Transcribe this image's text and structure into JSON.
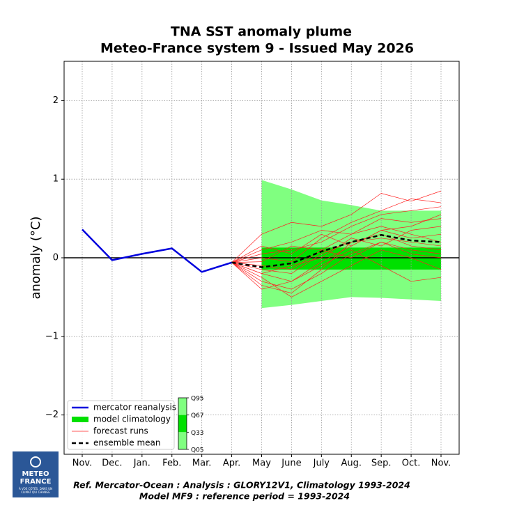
{
  "chart_data": {
    "type": "plume",
    "title": "TNA SST anomaly plume",
    "subtitle": "Meteo-France system 9 - Issued May 2026",
    "y_label": "anomaly (°C)",
    "categories": [
      "Nov.",
      "Dec.",
      "Jan.",
      "Feb.",
      "Mar.",
      "Apr.",
      "May",
      "June",
      "July",
      "Aug.",
      "Sep.",
      "Oct.",
      "Nov."
    ],
    "ylim": [
      -2.5,
      2.5
    ],
    "yticks": [
      {
        "value": -2,
        "label": "−2"
      },
      {
        "value": -1,
        "label": "−1"
      },
      0,
      1,
      2
    ],
    "grid": true,
    "zero_line": true,
    "legend": "lower left",
    "climatology": {
      "name": "model climatology",
      "color_outer": "#80ff80",
      "color_inner": "#00e000",
      "q95": [
        null,
        null,
        null,
        null,
        null,
        null,
        0.99,
        0.87,
        0.73,
        0.67,
        0.6,
        0.6,
        0.6
      ],
      "q67": [
        null,
        null,
        null,
        null,
        null,
        null,
        0.13,
        0.13,
        0.13,
        0.13,
        0.13,
        0.13,
        0.13
      ],
      "q33": [
        null,
        null,
        null,
        null,
        null,
        null,
        -0.15,
        -0.15,
        -0.15,
        -0.15,
        -0.15,
        -0.15,
        -0.15
      ],
      "q05": [
        null,
        null,
        null,
        null,
        null,
        null,
        -0.64,
        -0.6,
        -0.55,
        -0.5,
        -0.51,
        -0.53,
        -0.55
      ],
      "quantile_labels": [
        "Q95",
        "Q67",
        "Q33",
        "Q05"
      ]
    },
    "forecast_runs": {
      "name": "forecast runs",
      "color": "#ff2020",
      "runs": [
        [
          null,
          null,
          null,
          null,
          null,
          -0.06,
          -0.2,
          -0.3,
          -0.05,
          0.15,
          0.35,
          0.25,
          0.3
        ],
        [
          null,
          null,
          null,
          null,
          null,
          -0.06,
          0.1,
          0.2,
          0.35,
          0.3,
          0.5,
          0.45,
          0.5
        ],
        [
          null,
          null,
          null,
          null,
          null,
          -0.06,
          -0.3,
          -0.4,
          -0.2,
          0.05,
          0.2,
          0.1,
          0.05
        ],
        [
          null,
          null,
          null,
          null,
          null,
          -0.06,
          0.3,
          0.45,
          0.4,
          0.55,
          0.82,
          0.72,
          0.85
        ],
        [
          null,
          null,
          null,
          null,
          null,
          -0.06,
          -0.1,
          -0.15,
          0.1,
          0.3,
          0.4,
          0.3,
          0.2
        ],
        [
          null,
          null,
          null,
          null,
          null,
          -0.06,
          -0.25,
          -0.5,
          -0.3,
          -0.1,
          0.1,
          0.0,
          -0.15
        ],
        [
          null,
          null,
          null,
          null,
          null,
          -0.06,
          0.05,
          0.1,
          0.2,
          0.4,
          0.55,
          0.6,
          0.65
        ],
        [
          null,
          null,
          null,
          null,
          null,
          -0.06,
          -0.15,
          -0.2,
          0.05,
          0.2,
          0.3,
          0.15,
          0.1
        ],
        [
          null,
          null,
          null,
          null,
          null,
          -0.06,
          -0.4,
          -0.3,
          -0.1,
          0.1,
          -0.1,
          -0.3,
          -0.25
        ],
        [
          null,
          null,
          null,
          null,
          null,
          -0.06,
          0.0,
          -0.05,
          0.25,
          0.45,
          0.6,
          0.75,
          0.7
        ],
        [
          null,
          null,
          null,
          null,
          null,
          -0.06,
          -0.2,
          -0.1,
          0.0,
          0.25,
          0.15,
          0.35,
          0.4
        ],
        [
          null,
          null,
          null,
          null,
          null,
          -0.06,
          -0.05,
          0.15,
          0.1,
          0.0,
          0.2,
          0.05,
          0.0
        ],
        [
          null,
          null,
          null,
          null,
          null,
          -0.06,
          -0.35,
          -0.45,
          -0.15,
          0.2,
          0.25,
          0.2,
          0.15
        ],
        [
          null,
          null,
          null,
          null,
          null,
          -0.06,
          0.15,
          0.05,
          0.3,
          0.15,
          0.35,
          0.4,
          0.55
        ]
      ]
    },
    "series": [
      {
        "name": "mercator reanalysis",
        "color": "#0000dd",
        "values": [
          0.36,
          -0.03,
          0.05,
          0.12,
          -0.18,
          -0.06,
          null,
          null,
          null,
          null,
          null,
          null,
          null
        ]
      },
      {
        "name": "ensemble mean",
        "color": "#000000",
        "dashed": true,
        "values": [
          null,
          null,
          null,
          null,
          null,
          -0.06,
          -0.12,
          -0.07,
          0.08,
          0.2,
          0.29,
          0.22,
          0.2
        ]
      }
    ]
  },
  "footer": {
    "line1": "Ref. Mercator-Ocean :  Analysis : GLORY12V1, Climatology 1993-2024",
    "line2": "Model MF9 : reference period = 1993-2024"
  },
  "logo": {
    "line1": "METEO",
    "line2": "FRANCE",
    "tagline1": "À VOS CÔTÉS, DANS UN",
    "tagline2": "CLIMAT QUI CHANGE"
  }
}
